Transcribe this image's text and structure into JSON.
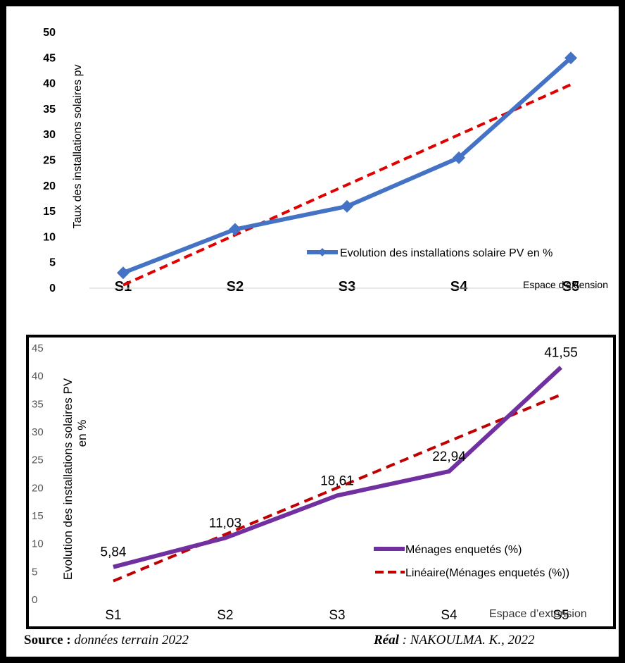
{
  "chart_data": [
    {
      "type": "line",
      "title": "",
      "categories": [
        "S1",
        "S2",
        "S3",
        "S4",
        "S5"
      ],
      "series": [
        {
          "name": "Evolution des installations solaire PV en %",
          "values": [
            3,
            11.5,
            16,
            25.5,
            45
          ],
          "color": "#4472C4",
          "marker": "diamond"
        }
      ],
      "trendline": {
        "type": "linear",
        "color": "#E00000",
        "dashed": true
      },
      "xlabel": "Espace d'extension",
      "ylabel": "Taux des installations solaires pv",
      "ylim": [
        0,
        50
      ],
      "yticks": [
        0,
        5,
        10,
        15,
        20,
        25,
        30,
        35,
        40,
        45,
        50
      ],
      "grid": false,
      "legend_position": "right",
      "tick_style": "bold"
    },
    {
      "type": "line",
      "title": "",
      "categories": [
        "S1",
        "S2",
        "S3",
        "S4",
        "S5"
      ],
      "series": [
        {
          "name": "Ménages enquetés (%)",
          "values": [
            5.84,
            11.03,
            18.61,
            22.94,
            41.55
          ],
          "labels": [
            "5,84",
            "11,03",
            "18,61",
            "22,94",
            "41,55"
          ],
          "color": "#7030A0"
        }
      ],
      "trendline": {
        "type": "linear",
        "name": "Linéaire(Ménages enquetés (%))",
        "color": "#C00000",
        "dashed": true
      },
      "xlabel": "Espace d’extension",
      "ylabel": "Evolution des installations solaires PV en %",
      "ylim": [
        0,
        45
      ],
      "yticks": [
        0,
        5,
        10,
        15,
        20,
        25,
        30,
        35,
        40,
        45
      ],
      "grid": false,
      "legend_position": "right",
      "tick_style": "normal"
    }
  ],
  "footer": {
    "source_label": "Source :",
    "source_text": "données terrain 2022",
    "credit_label": "Réal",
    "credit_text": ": NAKOULMA. K., 2022"
  }
}
